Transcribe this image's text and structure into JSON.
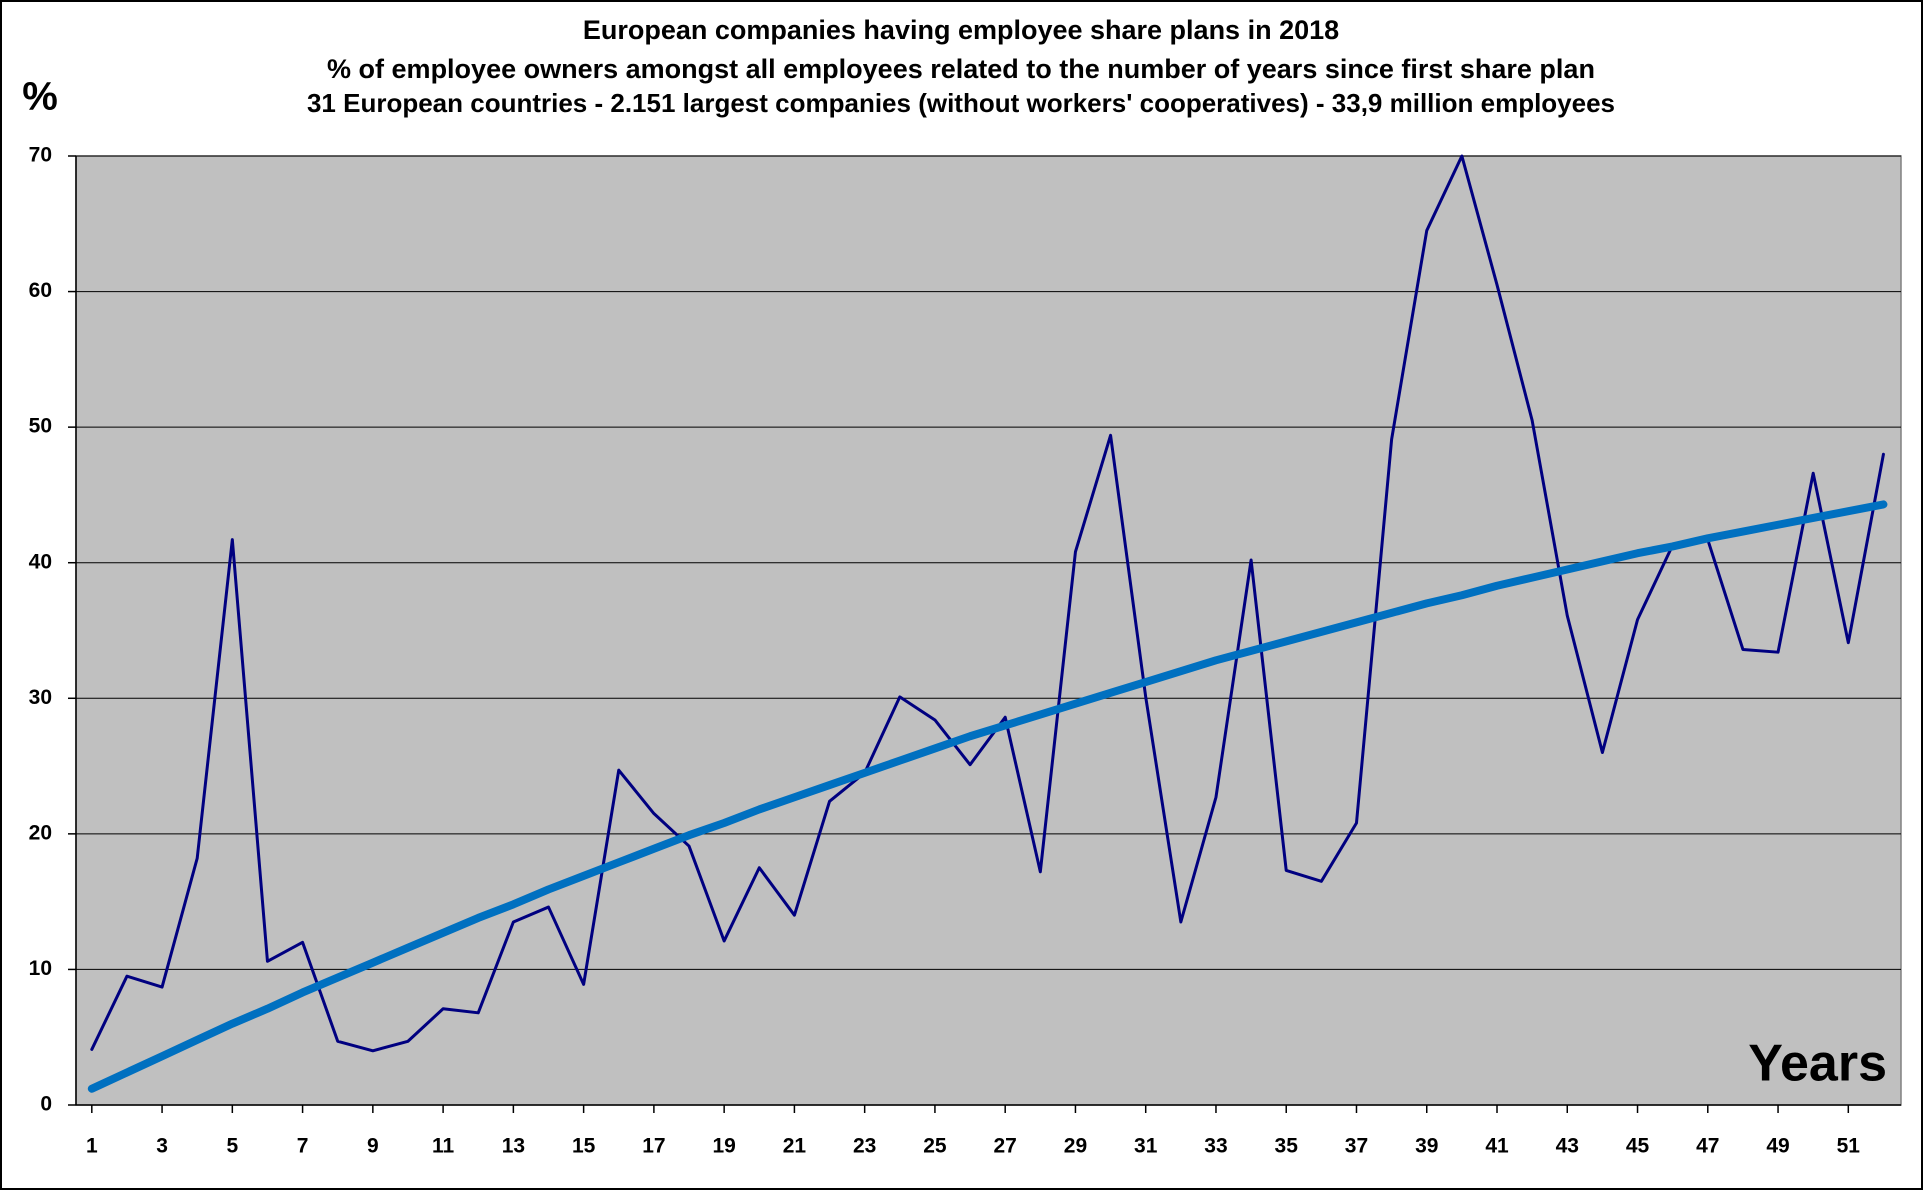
{
  "chart_data": {
    "type": "line",
    "title": "European companies having employee share plans in 2018",
    "subtitle": [
      "% of employee owners amongst all employees related to the number of years since first share plan",
      "31 European countries - 2.151 largest companies (without workers' cooperatives) - 33,9 million employees"
    ],
    "y_label": "%",
    "x_label": "Years",
    "x": [
      1,
      2,
      3,
      4,
      5,
      6,
      7,
      8,
      9,
      10,
      11,
      12,
      13,
      14,
      15,
      16,
      17,
      18,
      19,
      20,
      21,
      22,
      23,
      24,
      25,
      26,
      27,
      28,
      29,
      30,
      31,
      32,
      33,
      34,
      35,
      36,
      37,
      38,
      39,
      40,
      41,
      42,
      43,
      44,
      45,
      46,
      47,
      48,
      49,
      50,
      51,
      52
    ],
    "series": [
      {
        "color": "#000080",
        "width": 3,
        "values": [
          4.1,
          9.5,
          8.7,
          18.2,
          41.7,
          10.6,
          12.0,
          4.7,
          4.0,
          4.7,
          7.1,
          6.8,
          13.5,
          14.6,
          8.9,
          24.7,
          21.5,
          19.1,
          12.1,
          17.5,
          14.0,
          22.4,
          24.5,
          30.1,
          28.4,
          25.1,
          28.6,
          17.2,
          40.8,
          49.4,
          30.1,
          13.5,
          22.7,
          40.2,
          17.3,
          16.5,
          20.8,
          49.1,
          64.5,
          70,
          60.5,
          50.5,
          36.1,
          26.0,
          35.8,
          41.3,
          41.7,
          33.6,
          33.4,
          46.6,
          34.1,
          48.0
        ]
      },
      {
        "color": "#0070c0",
        "width": 8,
        "values": [
          1.2,
          2.4,
          3.6,
          4.8,
          6.0,
          7.1,
          8.3,
          9.4,
          10.5,
          11.6,
          12.7,
          13.8,
          14.8,
          15.9,
          16.9,
          17.9,
          18.9,
          19.9,
          20.8,
          21.8,
          22.7,
          23.6,
          24.5,
          25.4,
          26.3,
          27.2,
          28.0,
          28.8,
          29.6,
          30.4,
          31.2,
          32.0,
          32.8,
          33.5,
          34.2,
          34.9,
          35.6,
          36.3,
          37.0,
          37.6,
          38.3,
          38.9,
          39.5,
          40.1,
          40.7,
          41.2,
          41.8,
          42.3,
          42.8,
          43.3,
          43.8,
          44.3
        ]
      }
    ],
    "xlim": [
      0.55,
      52.5
    ],
    "xticks": [
      1,
      3,
      5,
      7,
      9,
      11,
      13,
      15,
      17,
      19,
      21,
      23,
      25,
      27,
      29,
      31,
      33,
      35,
      37,
      39,
      41,
      43,
      45,
      47,
      49,
      51
    ],
    "ylim": [
      0,
      70
    ],
    "yticks": [
      0,
      10,
      20,
      30,
      40,
      50,
      60,
      70
    ],
    "grid": true,
    "plot_background": "#c0c0c0"
  }
}
